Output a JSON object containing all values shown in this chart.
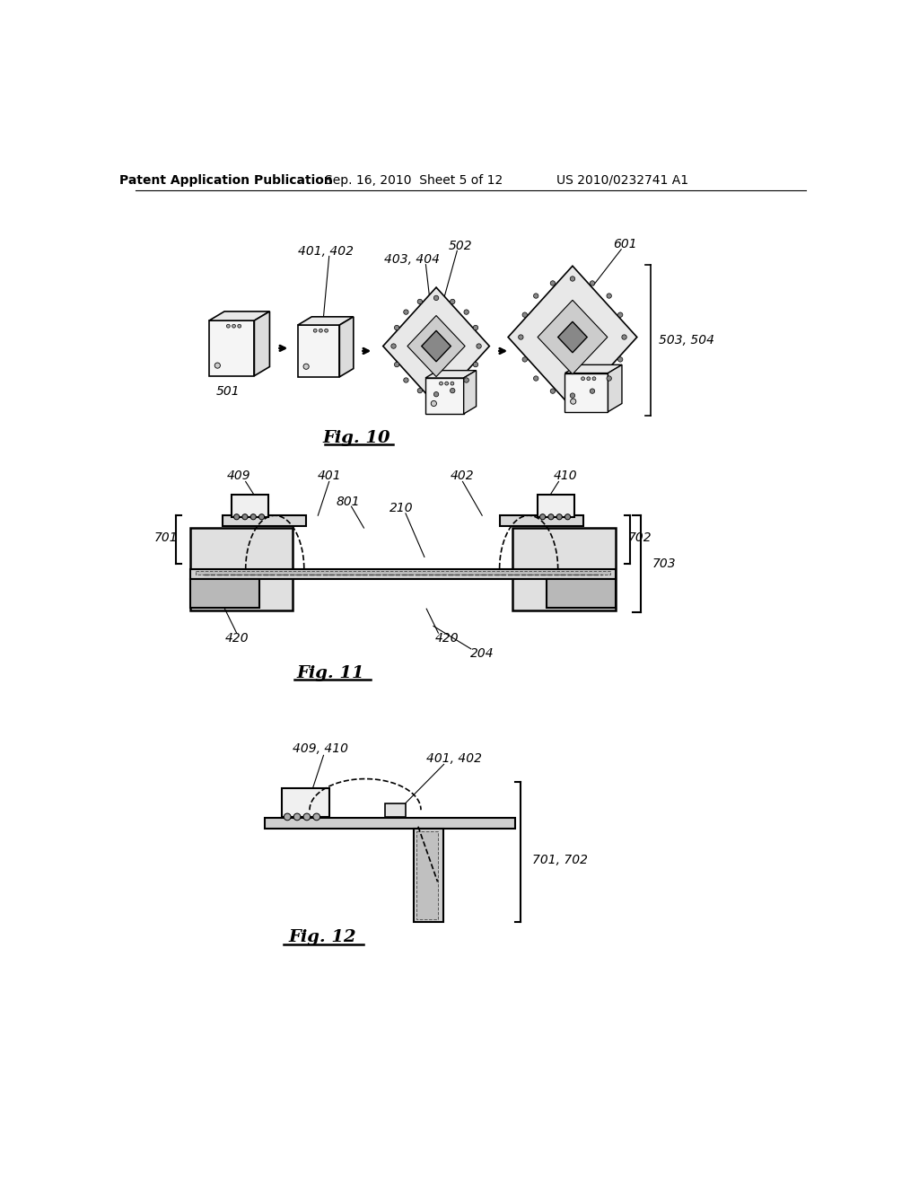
{
  "background_color": "#ffffff",
  "header_left": "Patent Application Publication",
  "header_center": "Sep. 16, 2010  Sheet 5 of 12",
  "header_right": "US 2010/0232741 A1",
  "fig10_label": "Fig. 10",
  "fig11_label": "Fig. 11",
  "fig12_label": "Fig. 12"
}
